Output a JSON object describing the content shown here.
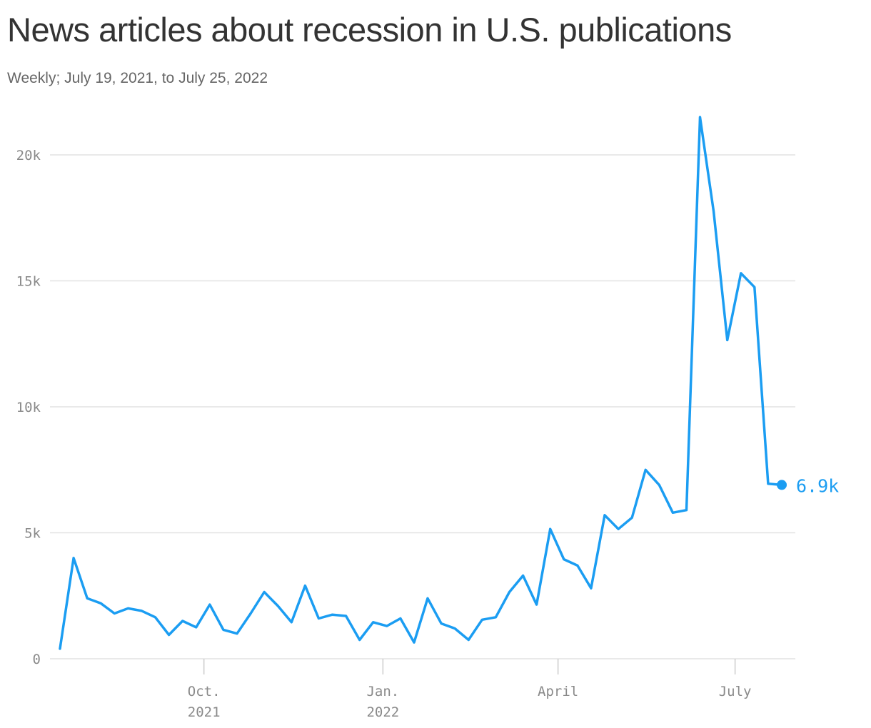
{
  "chart_data": {
    "type": "line",
    "title": "News articles about recession in U.S. publications",
    "subtitle": "Weekly; July 19, 2021, to July 25, 2022",
    "xlabel": "",
    "ylabel": "",
    "ylim": [
      0,
      20000
    ],
    "yticks": [
      {
        "value": 0,
        "label": "0"
      },
      {
        "value": 5000,
        "label": "5k"
      },
      {
        "value": 10000,
        "label": "10k"
      },
      {
        "value": 15000,
        "label": "15k"
      },
      {
        "value": 20000,
        "label": "20k"
      }
    ],
    "xticks": [
      {
        "date": "2021-10-01",
        "lines": [
          "Oct.",
          "2021"
        ]
      },
      {
        "date": "2022-01-01",
        "lines": [
          "Jan.",
          "2022"
        ]
      },
      {
        "date": "2022-04-01",
        "lines": [
          "April"
        ]
      },
      {
        "date": "2022-07-01",
        "lines": [
          "July"
        ]
      }
    ],
    "grid": true,
    "color": "#1b9df2",
    "end_label": "6.9k",
    "series": [
      {
        "x": [
          "2021-07-19",
          "2021-07-26",
          "2021-08-02",
          "2021-08-09",
          "2021-08-16",
          "2021-08-23",
          "2021-08-30",
          "2021-09-06",
          "2021-09-13",
          "2021-09-20",
          "2021-09-27",
          "2021-10-04",
          "2021-10-11",
          "2021-10-18",
          "2021-10-25",
          "2021-11-01",
          "2021-11-08",
          "2021-11-15",
          "2021-11-22",
          "2021-11-29",
          "2021-12-06",
          "2021-12-13",
          "2021-12-20",
          "2021-12-27",
          "2022-01-03",
          "2022-01-10",
          "2022-01-17",
          "2022-01-24",
          "2022-01-31",
          "2022-02-07",
          "2022-02-14",
          "2022-02-21",
          "2022-02-28",
          "2022-03-07",
          "2022-03-14",
          "2022-03-21",
          "2022-03-28",
          "2022-04-04",
          "2022-04-11",
          "2022-04-18",
          "2022-04-25",
          "2022-05-02",
          "2022-05-09",
          "2022-05-16",
          "2022-05-23",
          "2022-05-30",
          "2022-06-06",
          "2022-06-13",
          "2022-06-20",
          "2022-06-27",
          "2022-07-04",
          "2022-07-11",
          "2022-07-18",
          "2022-07-25"
        ],
        "values": [
          400,
          4000,
          2400,
          2200,
          1800,
          2000,
          1900,
          1650,
          950,
          1500,
          1250,
          2150,
          1150,
          1000,
          1800,
          2650,
          2100,
          1450,
          2900,
          1600,
          1750,
          1700,
          750,
          1450,
          1300,
          1600,
          650,
          2400,
          1400,
          1200,
          750,
          1550,
          1650,
          2650,
          3300,
          2150,
          5150,
          3950,
          3700,
          2800,
          5700,
          5150,
          5600,
          7500,
          6900,
          5800,
          5900,
          21500,
          17750,
          12650,
          15300,
          14750,
          6950,
          6900
        ]
      }
    ]
  }
}
